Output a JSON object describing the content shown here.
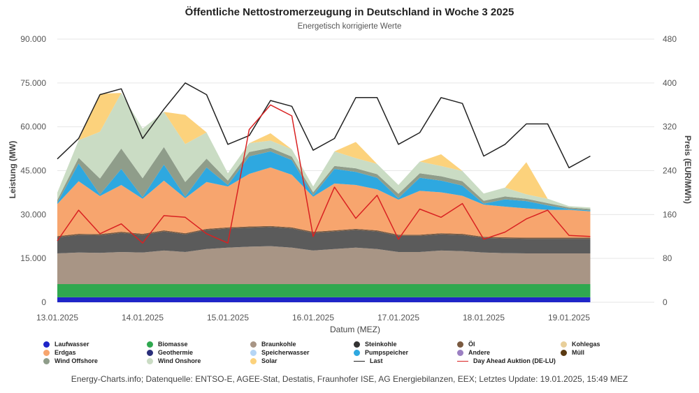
{
  "chart_data": {
    "type": "area",
    "title": "Öffentliche Nettostromerzeugung in Deutschland in Woche 3 2025",
    "subtitle": "Energetisch korrigierte Werte",
    "xlabel": "Datum (MEZ)",
    "ylabel": "Leistung (MW)",
    "y2label": "Preis (EUR/MWh)",
    "ylim": [
      0,
      90000
    ],
    "y2lim": [
      0,
      480
    ],
    "xlim": [
      0,
      7
    ],
    "yticks": [
      "0",
      "15.000",
      "30.000",
      "45.000",
      "60.000",
      "75.000",
      "90.000"
    ],
    "y2ticks": [
      "0",
      "80",
      "160",
      "240",
      "320",
      "400",
      "480"
    ],
    "xticks": [
      "13.01.2025",
      "14.01.2025",
      "15.01.2025",
      "16.01.2025",
      "17.01.2025",
      "18.01.2025",
      "19.01.2025"
    ],
    "x": [
      0,
      0.25,
      0.5,
      0.75,
      1,
      1.25,
      1.5,
      1.75,
      2,
      2.25,
      2.5,
      2.75,
      3,
      3.25,
      3.5,
      3.75,
      4,
      4.25,
      4.5,
      4.75,
      5,
      5.25,
      5.5,
      5.75,
      6,
      6.25
    ],
    "series": [
      {
        "name": "Laufwasser",
        "color": "#1f25c8",
        "values": [
          1700,
          1700,
          1700,
          1700,
          1700,
          1700,
          1700,
          1700,
          1700,
          1700,
          1700,
          1700,
          1700,
          1700,
          1700,
          1700,
          1700,
          1700,
          1700,
          1700,
          1700,
          1700,
          1700,
          1700,
          1700,
          1700
        ]
      },
      {
        "name": "Biomasse",
        "color": "#2fa84f",
        "values": [
          4500,
          4500,
          4500,
          4500,
          4500,
          4500,
          4500,
          4500,
          4500,
          4500,
          4500,
          4500,
          4500,
          4500,
          4500,
          4500,
          4500,
          4500,
          4500,
          4500,
          4500,
          4500,
          4500,
          4500,
          4500,
          4500
        ]
      },
      {
        "name": "Braunkohle",
        "color": "#a89585",
        "values": [
          10500,
          10800,
          10700,
          11000,
          10800,
          11500,
          11000,
          12000,
          12500,
          12800,
          13000,
          12500,
          11500,
          12000,
          12500,
          12000,
          11000,
          11000,
          11500,
          11300,
          10800,
          10600,
          10500,
          10500,
          10500,
          10500
        ]
      },
      {
        "name": "Steinkohle",
        "color": "#5b5b5b",
        "values": [
          5500,
          6000,
          6000,
          6500,
          6000,
          6500,
          6000,
          6500,
          6500,
          6500,
          6500,
          6500,
          6000,
          6000,
          6000,
          6000,
          5500,
          5500,
          5500,
          5500,
          5000,
          5000,
          5000,
          5000,
          5000,
          5000
        ]
      },
      {
        "name": "Öl",
        "color": "#7a5a40",
        "values": [
          400,
          400,
          400,
          400,
          400,
          400,
          400,
          400,
          400,
          400,
          400,
          400,
          400,
          400,
          400,
          400,
          400,
          400,
          400,
          400,
          400,
          400,
          400,
          400,
          400,
          400
        ]
      },
      {
        "name": "Erdgas",
        "color": "#f7a56e",
        "values": [
          11000,
          18000,
          13000,
          16000,
          12000,
          17000,
          12000,
          16000,
          14000,
          18000,
          20000,
          18000,
          12000,
          16000,
          15000,
          14000,
          12000,
          15000,
          14000,
          13000,
          11000,
          10500,
          10000,
          9500,
          9500,
          9000
        ]
      },
      {
        "name": "Pumpspeicher",
        "color": "#2ea8e0",
        "values": [
          400,
          6000,
          500,
          5500,
          500,
          5500,
          500,
          5000,
          500,
          6000,
          5500,
          5000,
          500,
          5000,
          4500,
          4000,
          500,
          4500,
          4000,
          3500,
          300,
          2500,
          2500,
          1500,
          300,
          300
        ]
      },
      {
        "name": "Wind Offshore",
        "color": "#8f9d8a",
        "values": [
          1000,
          2000,
          5500,
          7000,
          6500,
          6000,
          5000,
          3000,
          1500,
          1500,
          1200,
          1200,
          1000,
          1000,
          1200,
          1200,
          1500,
          1500,
          1500,
          1500,
          1000,
          1000,
          800,
          800,
          500,
          500
        ]
      },
      {
        "name": "Wind Onshore",
        "color": "#cadcc4",
        "values": [
          2500,
          6000,
          16000,
          19000,
          17000,
          12000,
          13000,
          9000,
          2500,
          3000,
          2500,
          2500,
          2000,
          5000,
          3500,
          3500,
          3000,
          4000,
          3500,
          3500,
          2500,
          3000,
          1500,
          1500,
          500,
          500
        ]
      },
      {
        "name": "Solar",
        "color": "#fcd27c",
        "values": [
          0,
          0,
          13000,
          0,
          0,
          0,
          10000,
          0,
          0,
          0,
          2500,
          0,
          0,
          0,
          5500,
          0,
          0,
          0,
          4000,
          0,
          0,
          0,
          11000,
          0,
          0,
          0
        ]
      }
    ],
    "lines": [
      {
        "name": "Last",
        "color": "#222222",
        "axis": "left",
        "values": [
          49000,
          56000,
          71000,
          73000,
          56000,
          66000,
          75000,
          71000,
          54000,
          57000,
          69000,
          67000,
          52000,
          56000,
          70000,
          70000,
          54000,
          58000,
          70000,
          68000,
          50000,
          54000,
          61000,
          61000,
          46000,
          50000
        ]
      },
      {
        "name": "Day Ahead Auktion (DE-LU)",
        "color": "#d92121",
        "axis": "right",
        "values": [
          112,
          168,
          125,
          143,
          108,
          158,
          155,
          125,
          108,
          315,
          360,
          340,
          120,
          210,
          153,
          195,
          115,
          170,
          155,
          180,
          115,
          128,
          152,
          168,
          122,
          120
        ]
      }
    ],
    "legend_position": "bottom",
    "legend": [
      {
        "name": "Laufwasser",
        "color": "#1f25c8",
        "kind": "dot"
      },
      {
        "name": "Biomasse",
        "color": "#2fa84f",
        "kind": "dot"
      },
      {
        "name": "Braunkohle",
        "color": "#a89585",
        "kind": "dot"
      },
      {
        "name": "Steinkohle",
        "color": "#333333",
        "kind": "dot"
      },
      {
        "name": "Öl",
        "color": "#7a5a40",
        "kind": "dot"
      },
      {
        "name": "Kohlegas",
        "color": "#e8cf9a",
        "kind": "dot"
      },
      {
        "name": "Erdgas",
        "color": "#f7a56e",
        "kind": "dot"
      },
      {
        "name": "Geothermie",
        "color": "#2a2f7a",
        "kind": "dot"
      },
      {
        "name": "Speicherwasser",
        "color": "#b5d5f5",
        "kind": "dot"
      },
      {
        "name": "Pumpspeicher",
        "color": "#2ea8e0",
        "kind": "dot"
      },
      {
        "name": "Andere",
        "color": "#9b7fc2",
        "kind": "dot"
      },
      {
        "name": "Müll",
        "color": "#5a3a12",
        "kind": "dot"
      },
      {
        "name": "Wind Offshore",
        "color": "#8f9d8a",
        "kind": "dot"
      },
      {
        "name": "Wind Onshore",
        "color": "#cadcc4",
        "kind": "dot"
      },
      {
        "name": "Solar",
        "color": "#fcd27c",
        "kind": "dot"
      },
      {
        "name": "Last",
        "color": "#222222",
        "kind": "line"
      },
      {
        "name": "Day Ahead Auktion (DE-LU)",
        "color": "#d92121",
        "kind": "line"
      }
    ]
  },
  "credits": "Energy-Charts.info; Datenquelle: ENTSO-E, AGEE-Stat, Destatis, Fraunhofer ISE, AG Energiebilanzen, EEX; Letztes Update: 19.01.2025, 15:49 MEZ"
}
